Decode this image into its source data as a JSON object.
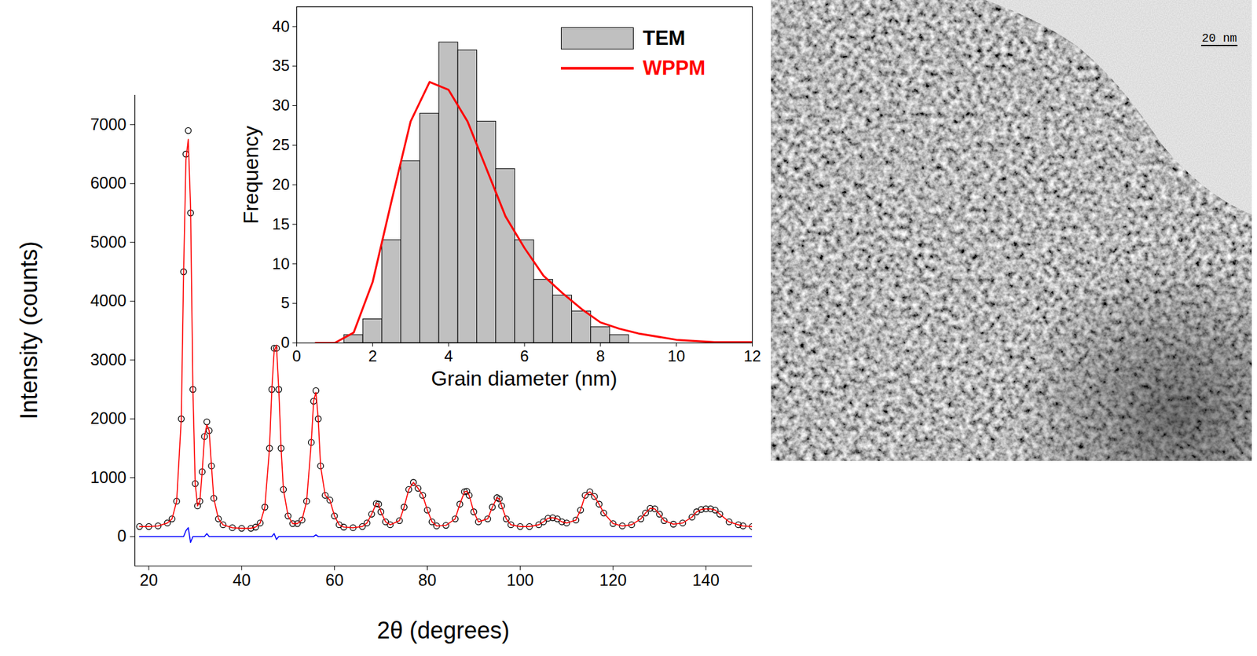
{
  "chart_data": [
    {
      "type": "line",
      "x_label": "2θ (degrees)",
      "y_label": "Intensity (counts)",
      "xlim": [
        17,
        150
      ],
      "xticks": [
        20,
        40,
        60,
        80,
        100,
        120,
        140
      ],
      "ylim": [
        -500,
        7500
      ],
      "yticks": [
        0,
        1000,
        2000,
        3000,
        4000,
        5000,
        6000,
        7000
      ],
      "grid": false,
      "x": [
        18,
        20,
        22,
        24,
        25,
        26,
        27,
        27.5,
        28,
        28.5,
        29,
        29.5,
        30,
        30.5,
        31,
        31.5,
        32,
        32.5,
        33,
        33.5,
        34,
        35,
        36,
        38,
        40,
        42,
        43,
        44,
        45,
        46,
        46.5,
        47,
        47.5,
        48,
        48.5,
        49,
        50,
        51,
        52,
        53,
        54,
        55,
        55.5,
        56,
        56.5,
        57,
        58,
        59,
        60,
        61,
        62,
        64,
        66,
        67,
        68,
        69,
        69.5,
        70,
        71,
        72,
        74,
        75,
        76,
        77,
        78,
        79,
        80,
        81,
        82,
        84,
        86,
        87,
        88,
        88.5,
        89,
        90,
        91,
        93,
        94,
        95,
        95.5,
        96,
        97,
        98,
        100,
        102,
        104,
        105,
        106,
        107,
        108,
        109,
        110,
        112,
        113,
        114,
        115,
        116,
        117,
        118,
        120,
        122,
        124,
        126,
        127,
        128,
        129,
        130,
        131,
        133,
        135,
        137,
        138,
        139,
        140,
        141,
        142,
        143,
        145,
        147,
        148,
        150
      ],
      "series": [
        {
          "type": "scatter",
          "marker": "circle",
          "color": "#000000",
          "values": [
            170,
            170,
            180,
            230,
            300,
            600,
            2000,
            4500,
            6500,
            6900,
            5500,
            2500,
            900,
            520,
            600,
            1100,
            1700,
            1950,
            1800,
            1200,
            650,
            300,
            200,
            150,
            140,
            140,
            160,
            230,
            500,
            1500,
            2500,
            3200,
            3200,
            2500,
            1500,
            800,
            350,
            220,
            220,
            280,
            600,
            1600,
            2300,
            2480,
            2000,
            1200,
            700,
            620,
            350,
            200,
            160,
            150,
            170,
            230,
            380,
            560,
            550,
            420,
            250,
            200,
            270,
            500,
            800,
            920,
            820,
            700,
            450,
            250,
            180,
            190,
            300,
            550,
            760,
            770,
            700,
            420,
            250,
            300,
            500,
            660,
            640,
            520,
            300,
            200,
            170,
            170,
            200,
            250,
            310,
            320,
            300,
            250,
            230,
            280,
            450,
            700,
            760,
            680,
            550,
            400,
            220,
            180,
            200,
            300,
            400,
            480,
            470,
            380,
            270,
            210,
            230,
            330,
            420,
            460,
            470,
            470,
            450,
            380,
            250,
            200,
            180,
            170
          ]
        },
        {
          "type": "line",
          "color": "#ff0000",
          "values": [
            170,
            170,
            180,
            230,
            300,
            600,
            2000,
            4500,
            6400,
            6750,
            5600,
            2500,
            900,
            520,
            600,
            1100,
            1700,
            1900,
            1800,
            1200,
            650,
            300,
            200,
            150,
            140,
            140,
            160,
            230,
            500,
            1500,
            2500,
            3150,
            3250,
            2500,
            1500,
            800,
            350,
            220,
            220,
            280,
            600,
            1600,
            2300,
            2450,
            2000,
            1200,
            700,
            620,
            350,
            200,
            160,
            150,
            170,
            230,
            380,
            560,
            550,
            420,
            250,
            200,
            270,
            500,
            800,
            920,
            820,
            700,
            450,
            250,
            180,
            190,
            300,
            550,
            760,
            770,
            700,
            420,
            250,
            300,
            500,
            660,
            640,
            520,
            300,
            200,
            170,
            170,
            200,
            250,
            310,
            320,
            300,
            250,
            230,
            280,
            450,
            700,
            760,
            680,
            550,
            400,
            220,
            180,
            200,
            300,
            400,
            480,
            470,
            380,
            270,
            210,
            230,
            330,
            420,
            460,
            470,
            470,
            450,
            380,
            250,
            200,
            180,
            170
          ]
        },
        {
          "type": "line",
          "color": "#0000ff",
          "values": [
            0,
            0,
            0,
            0,
            0,
            0,
            0,
            0,
            100,
            150,
            -100,
            0,
            0,
            0,
            0,
            0,
            0,
            50,
            0,
            0,
            0,
            0,
            0,
            0,
            0,
            0,
            0,
            0,
            0,
            0,
            0,
            50,
            -50,
            0,
            0,
            0,
            0,
            0,
            0,
            0,
            0,
            0,
            0,
            30,
            0,
            0,
            0,
            0,
            0,
            0,
            0,
            0,
            0,
            0,
            0,
            0,
            0,
            0,
            0,
            0,
            0,
            0,
            0,
            0,
            0,
            0,
            0,
            0,
            0,
            0,
            0,
            0,
            0,
            0,
            0,
            0,
            0,
            0,
            0,
            0,
            0,
            0,
            0,
            0,
            0,
            0,
            0,
            0,
            0,
            0,
            0,
            0,
            0,
            0,
            0,
            0,
            0,
            0,
            0,
            0,
            0,
            0,
            0,
            0,
            0,
            0,
            0,
            0,
            0,
            0,
            0,
            0,
            0,
            0,
            0,
            0,
            0,
            0,
            0,
            0,
            0,
            0
          ]
        }
      ]
    },
    {
      "type": "histogram",
      "x_label": "Grain diameter (nm)",
      "y_label": "Frequency",
      "xlim": [
        0,
        12
      ],
      "xticks": [
        0,
        2,
        4,
        6,
        8,
        10,
        12
      ],
      "ylim": [
        0,
        42.5
      ],
      "yticks": [
        0,
        5,
        10,
        15,
        20,
        25,
        30,
        35,
        40
      ],
      "grid": false,
      "legend": "upper right",
      "bins": [
        1.25,
        1.75,
        2.25,
        2.75,
        3.25,
        3.75,
        4.25,
        4.75,
        5.25,
        5.75,
        6.25,
        6.75,
        7.25,
        7.75,
        8.25,
        8.75
      ],
      "series": [
        {
          "name": "TEM",
          "type": "bar",
          "color": "#c0c0c0",
          "values": [
            1,
            3,
            13,
            23,
            29,
            38,
            37,
            28,
            22,
            13,
            8,
            6,
            4,
            2,
            1
          ]
        },
        {
          "name": "WPPM",
          "type": "line",
          "color": "#ff0000",
          "x": [
            0.5,
            1,
            1.5,
            2,
            2.5,
            3,
            3.5,
            4,
            4.5,
            5,
            5.5,
            6,
            6.5,
            7,
            7.5,
            8,
            8.5,
            9,
            10,
            11,
            12
          ],
          "values": [
            0,
            0,
            1.3,
            7.7,
            18,
            28,
            33,
            32,
            28,
            22,
            16,
            12,
            8.5,
            6.3,
            4.3,
            2.6,
            1.8,
            1.2,
            0.4,
            0.1,
            0.1
          ]
        }
      ]
    }
  ],
  "image": {
    "scale_bar": "20 nm"
  }
}
